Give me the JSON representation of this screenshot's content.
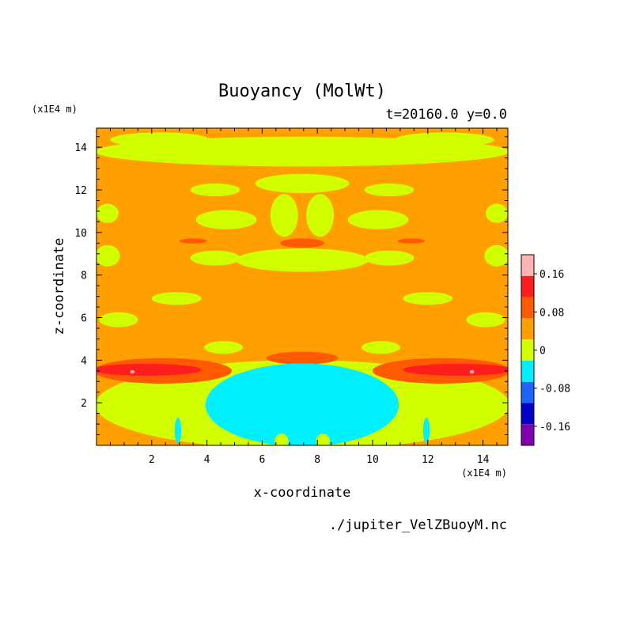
{
  "chart_data": {
    "type": "heatmap",
    "title": "Buoyancy (MolWt)",
    "subtitle": "t=20160.0 y=0.0",
    "xlabel": "x-coordinate",
    "ylabel": "z-coordinate",
    "x_unit": "(x1E4 m)",
    "y_unit": "(x1E4 m)",
    "footer": "./jupiter_VelZBuoyM.nc",
    "xlim": [
      0,
      14.9
    ],
    "ylim": [
      0,
      14.9
    ],
    "x_ticks": [
      2,
      4,
      6,
      8,
      10,
      12,
      14
    ],
    "y_ticks": [
      2,
      4,
      6,
      8,
      10,
      12,
      14
    ],
    "x_tick_labels": [
      "2",
      "4",
      "6",
      "8",
      "10",
      "12",
      "14"
    ],
    "y_tick_labels": [
      "2",
      "4",
      "6",
      "8",
      "10",
      "12",
      "14"
    ],
    "background_level": "0 to 0.04",
    "colorbar": {
      "levels": [
        -0.2,
        -0.16,
        -0.12,
        -0.08,
        -0.04,
        0,
        0.04,
        0.08,
        0.12,
        0.16,
        0.2
      ],
      "colors": [
        "#8000b0",
        "#0000c8",
        "#1e64ff",
        "#00f0ff",
        "#d2ff00",
        "#ffa000",
        "#ff5a00",
        "#ff1e1e",
        "#ffb4b4"
      ],
      "tick_values": [
        -0.16,
        -0.08,
        0,
        0.08,
        0.16
      ],
      "tick_labels": [
        "-0.16",
        "-0.08",
        "0",
        "0.08",
        "0.16"
      ]
    },
    "regions": [
      {
        "level": -0.04,
        "x": 7.45,
        "y": 13.8,
        "rx": 7.5,
        "ry": 0.7
      },
      {
        "level": -0.04,
        "x": 2.3,
        "y": 14.35,
        "rx": 1.8,
        "ry": 0.35
      },
      {
        "level": -0.04,
        "x": 12.6,
        "y": 14.35,
        "rx": 1.8,
        "ry": 0.35
      },
      {
        "level": -0.04,
        "x": 7.45,
        "y": 12.3,
        "rx": 1.7,
        "ry": 0.45
      },
      {
        "level": -0.04,
        "x": 4.3,
        "y": 12.0,
        "rx": 0.9,
        "ry": 0.3
      },
      {
        "level": -0.04,
        "x": 10.6,
        "y": 12.0,
        "rx": 0.9,
        "ry": 0.3
      },
      {
        "level": -0.04,
        "x": 6.8,
        "y": 10.8,
        "rx": 0.5,
        "ry": 1.0
      },
      {
        "level": -0.04,
        "x": 8.1,
        "y": 10.8,
        "rx": 0.5,
        "ry": 1.0
      },
      {
        "level": -0.04,
        "x": 4.7,
        "y": 10.6,
        "rx": 1.1,
        "ry": 0.45
      },
      {
        "level": -0.04,
        "x": 10.2,
        "y": 10.6,
        "rx": 1.1,
        "ry": 0.45
      },
      {
        "level": -0.04,
        "x": 0.4,
        "y": 10.9,
        "rx": 0.4,
        "ry": 0.45
      },
      {
        "level": -0.04,
        "x": 14.5,
        "y": 10.9,
        "rx": 0.4,
        "ry": 0.45
      },
      {
        "level": -0.04,
        "x": 0.4,
        "y": 8.9,
        "rx": 0.45,
        "ry": 0.5
      },
      {
        "level": -0.04,
        "x": 14.5,
        "y": 8.9,
        "rx": 0.45,
        "ry": 0.5
      },
      {
        "level": -0.04,
        "x": 7.45,
        "y": 8.7,
        "rx": 2.4,
        "ry": 0.55
      },
      {
        "level": -0.04,
        "x": 4.3,
        "y": 8.8,
        "rx": 0.9,
        "ry": 0.35
      },
      {
        "level": -0.04,
        "x": 10.6,
        "y": 8.8,
        "rx": 0.9,
        "ry": 0.35
      },
      {
        "level": -0.04,
        "x": 2.9,
        "y": 6.9,
        "rx": 0.9,
        "ry": 0.3
      },
      {
        "level": -0.04,
        "x": 12.0,
        "y": 6.9,
        "rx": 0.9,
        "ry": 0.3
      },
      {
        "level": -0.04,
        "x": 0.8,
        "y": 5.9,
        "rx": 0.7,
        "ry": 0.35
      },
      {
        "level": -0.04,
        "x": 14.1,
        "y": 5.9,
        "rx": 0.7,
        "ry": 0.35
      },
      {
        "level": -0.04,
        "x": 4.6,
        "y": 4.6,
        "rx": 0.7,
        "ry": 0.3
      },
      {
        "level": -0.04,
        "x": 10.3,
        "y": 4.6,
        "rx": 0.7,
        "ry": 0.3
      },
      {
        "level": -0.04,
        "x": 7.45,
        "y": 1.9,
        "rx": 7.5,
        "ry": 2.1
      },
      {
        "level": 0.04,
        "x": 7.45,
        "y": 4.1,
        "rx": 1.3,
        "ry": 0.3
      },
      {
        "level": 0.04,
        "x": 3.5,
        "y": 9.6,
        "rx": 0.5,
        "ry": 0.12
      },
      {
        "level": 0.04,
        "x": 7.45,
        "y": 9.5,
        "rx": 0.8,
        "ry": 0.22
      },
      {
        "level": 0.04,
        "x": 11.4,
        "y": 9.6,
        "rx": 0.5,
        "ry": 0.12
      },
      {
        "level": 0.04,
        "x": 2.4,
        "y": 3.5,
        "rx": 2.5,
        "ry": 0.6
      },
      {
        "level": 0.04,
        "x": 12.5,
        "y": 3.5,
        "rx": 2.5,
        "ry": 0.6
      },
      {
        "level": 0.08,
        "x": 1.8,
        "y": 3.55,
        "rx": 2.0,
        "ry": 0.28
      },
      {
        "level": 0.08,
        "x": 13.1,
        "y": 3.55,
        "rx": 2.0,
        "ry": 0.28
      },
      {
        "level": 0.12,
        "x": 1.3,
        "y": 3.45,
        "rx": 0.08,
        "ry": 0.08
      },
      {
        "level": 0.12,
        "x": 13.6,
        "y": 3.45,
        "rx": 0.08,
        "ry": 0.08
      },
      {
        "level": -0.08,
        "x": 7.45,
        "y": 1.9,
        "rx": 3.5,
        "ry": 1.95
      },
      {
        "level": -0.08,
        "x": 2.95,
        "y": 0.7,
        "rx": 0.12,
        "ry": 0.6
      },
      {
        "level": -0.08,
        "x": 11.95,
        "y": 0.7,
        "rx": 0.12,
        "ry": 0.6
      },
      {
        "level": -0.04,
        "x": 6.7,
        "y": 0.2,
        "rx": 0.25,
        "ry": 0.35
      },
      {
        "level": -0.04,
        "x": 8.2,
        "y": 0.2,
        "rx": 0.25,
        "ry": 0.35
      }
    ]
  }
}
